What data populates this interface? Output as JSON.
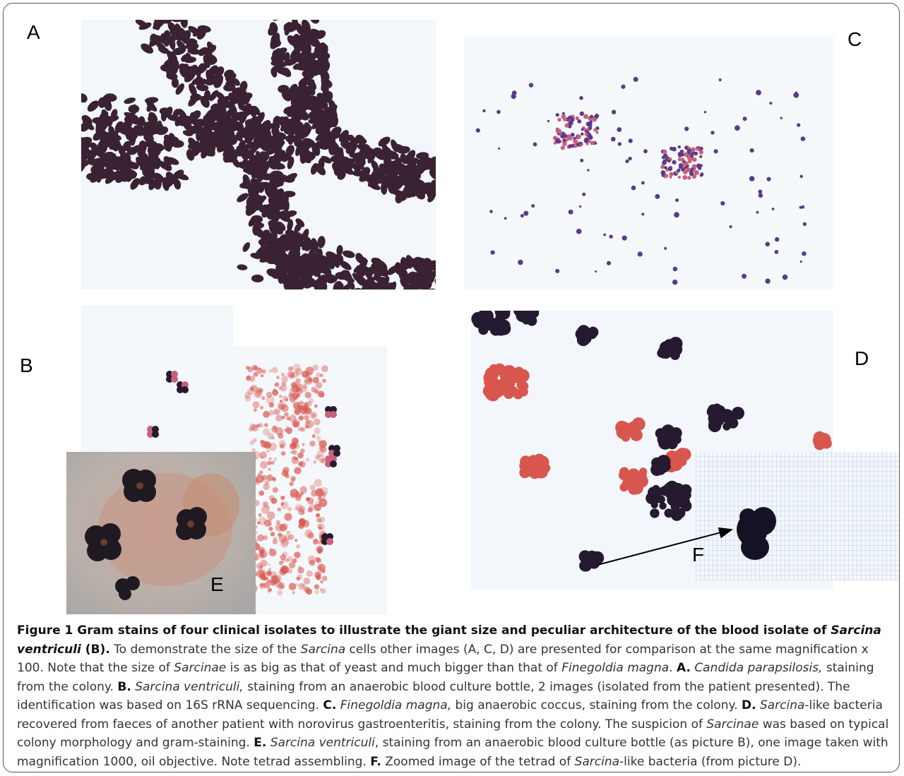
{
  "panel_labels": {
    "a": "A",
    "b": "B",
    "c": "C",
    "d": "D",
    "e": "E",
    "f": "F"
  },
  "caption": {
    "title_a": "Figure 1 Gram stains of four clinical isolates to illustrate the giant size and peculiar architecture of the blood isolate of ",
    "title_genus": "Sarcina",
    "title_species": "ventriculi",
    "title_b": " (B).",
    "s1a": " To demonstrate the size of the ",
    "s1_genus": "Sarcina",
    "s1b": " cells other images (A, C, D) are presented for comparison at the same magnification x 100. Note that the size of ",
    "s1_sarcinae": "Sarcinae",
    "s1c": " is as big as that of yeast and much bigger than that of ",
    "s1_finegoldia": "Finegoldia magna",
    "s1d": ". ",
    "a_label": "A.",
    "a_species": "Candida parapsilosis,",
    "a_text": " staining from the colony. ",
    "b_label": "B.",
    "b_species": "Sarcina ventriculi,",
    "b_text": " staining from an anaerobic blood culture bottle, 2 images (isolated from the patient presented). The identification was based on 16S rRNA sequencing. ",
    "c_label": "C.",
    "c_species": "Finegoldia magna,",
    "c_text": " big anaerobic coccus, staining from the colony. ",
    "d_label": "D.",
    "d_species": "Sarcina",
    "d_text_a": "-like bacteria recovered from faeces of another patient with norovirus gastroenteritis, staining from the colony. The suspicion of ",
    "d_sarcinae": "Sarcinae",
    "d_text_b": " was based on typical colony morphology and gram-staining. ",
    "e_label": "E.",
    "e_species": "Sarcina ventriculi",
    "e_text": ", staining from an anaerobic blood culture bottle (as picture B), one image taken with magnification 1000, oil objective. Note tetrad assembling. ",
    "f_label": "F.",
    "f_text_a": " Zoomed image of the tetrad of ",
    "f_species": "Sarcina",
    "f_text_b": "-like bacteria (from picture D)."
  },
  "colors": {
    "yeast": "#3a2233",
    "coccus_violet": "#5a3a8a",
    "coccus_pink": "#c9607a",
    "sarcina_dark": "#251a30",
    "sarcina_red": "#d8564e",
    "micro_bg": "#f4f8fc",
    "e_bg": "#b8b2ac"
  }
}
